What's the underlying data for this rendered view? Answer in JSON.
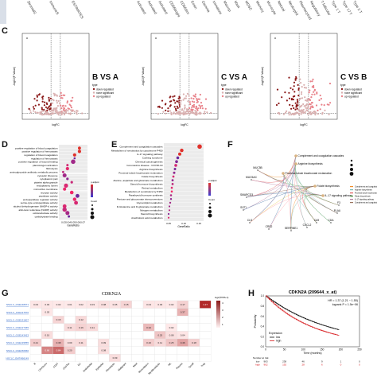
{
  "top_strip": {
    "left_labels": [
      "StromalS",
      "ImmuneS",
      "ESTIMATES"
    ],
    "right_labels": [
      "Activated",
      "Activated",
      "Activated",
      "CD56bright",
      "CD56dim",
      "Eosin",
      "Gamma",
      "Immature",
      "Macrop",
      "Mast",
      "MDSC",
      "Memory",
      "Monocyte",
      "Natural",
      "Neutrophil",
      "Plasmacytoid",
      "Regulatory",
      "T follicular",
      "Type 1 T",
      "Type 17 T",
      "Type 2 T"
    ]
  },
  "panel_c": {
    "label": "C",
    "plots": [
      {
        "title": "B VS A",
        "xlabel": "logFC",
        "ylabel": "-log10(P Value)"
      },
      {
        "title": "C VS A",
        "xlabel": "logFC",
        "ylabel": "-log10(P Value)"
      },
      {
        "title": "C VS B",
        "xlabel": "logFC",
        "ylabel": "-log10(P Value)"
      }
    ],
    "legend_title": "type",
    "legend_items": [
      "down regulated",
      "none significant",
      "up regulated"
    ]
  },
  "panel_d": {
    "label": "D",
    "xlabel": "GeneRatio",
    "legend_title_p": "p.adjust",
    "legend_title_count": "Count",
    "terms": [
      "positive regulation of blood coagulation",
      "positive regulation of hemostasis",
      "regulation of blood coagulation",
      "regulation of hemostasis",
      "positive regulation of wound healing",
      "plasminogen activation",
      "fibrinolysis",
      "aminoglycoside antibiotic metabolic process",
      "cytosolic ribosome",
      "cytoplasmic part",
      "platelet alpha granule",
      "endoplasmic lumen",
      "microvillus membrane",
      "receptor activity",
      "peptidase activity",
      "endopeptidase regulator activity",
      "serine-type endopeptidase activity",
      "alcohol dehydrogenase (NADP+) activity",
      "aldo-keto reductase (NADP) activity",
      "oxidoreductase activity",
      "carbohydrate binding"
    ],
    "xticks": [
      "0.03",
      "0.04",
      "0.05",
      "0.06",
      "0.07"
    ]
  },
  "panel_e": {
    "label": "E",
    "xlabel": "GeneRatio",
    "legend_title_p": "p.adjust",
    "legend_title_count": "Count",
    "terms": [
      "Complement and coagulation cascades",
      "Metabolism of xenobiotics by cytochrome P450",
      "IL-17 signaling pathway",
      "Cushing syndrome",
      "Chemical carcinogenesis",
      "Coronavirus disease - COVID-19",
      "Arginine biosynthesis",
      "Proximal tubule bicarbonate reclamation",
      "Folate biosynthesis",
      "Alanine, aspartate and glutamate metabolism",
      "Steroid hormone biosynthesis",
      "Retinol metabolism",
      "Metabolism of xenobiotics by P450",
      "Parathyroid hormone synthesis",
      "Pentose and glucuronate interconversions",
      "Glycerolipid metabolism",
      "D-Glutamine and D-glutamate metabolism",
      "Nitrogen metabolism",
      "Steroid biosynthesis",
      "Arachidonic acid metabolism"
    ],
    "xticks": [
      "0.05",
      "0.10",
      "0.15"
    ]
  },
  "panel_f": {
    "label": "F",
    "center_terms": [
      "Complement and coagulation cascades",
      "Arginine biosynthesis",
      "Proximal tubule bicarbonate reclamation",
      "Folate biosynthesis",
      "IL-17 signaling pathway"
    ],
    "genes": [
      "MUC5B",
      "MUC5AC",
      "SMARCD3",
      "SGTI",
      "CLS",
      "CRS2",
      "SERPINE1",
      "CXCL2",
      "CA9",
      "CDA",
      "PLAU",
      "F3"
    ]
  },
  "panel_g": {
    "label": "G",
    "title": "CDKN2A",
    "legend_title": "log2(TPM+1)",
    "legend_ticks": [
      "4",
      "3",
      "2",
      "1"
    ],
    "row_labels": [
      "NSCLC_GSE148071",
      "NSCLC_GSE117570",
      "NSCLC_GSE131907",
      "NSCLC_GSE127465",
      "NSCLC_GSE143423",
      "NSCLC_GSE139555",
      "NSCLC_GSE150660",
      "NSCLC_EMTAB6149"
    ],
    "col_labels": [
      "B",
      "CD4Tconv",
      "CD8T",
      "CD8Tex",
      "DC",
      "Endothelial",
      "Epithelial",
      "Fibroblasts",
      "Malignant",
      "Mast",
      "Mono/Macro",
      "Myofibroblasts",
      "NK",
      "Plasma",
      "Tprolif",
      "Treg"
    ],
    "cells": [
      [
        "0.03",
        "0.03",
        "0.02",
        "0.01",
        "0.02",
        "0.03",
        "0.08",
        "0.05",
        "0.15",
        "",
        "0.04",
        "0.03",
        "0.02",
        "0.17",
        "",
        "1.27"
      ],
      [
        "",
        "0.03",
        "",
        "",
        "",
        "",
        "",
        "",
        "",
        "",
        "",
        "",
        "",
        "0.37",
        "",
        ""
      ],
      [
        "",
        "",
        "0.15",
        "",
        "0.12",
        "",
        "",
        "",
        "",
        "",
        "",
        "",
        "",
        "",
        "",
        ""
      ],
      [
        "",
        "",
        "",
        "0.11",
        "0.16",
        "0.11",
        "",
        "",
        "",
        "",
        "0.32",
        "",
        "0.02",
        "",
        "",
        ""
      ],
      [
        "",
        "0.10",
        "",
        "",
        "",
        "",
        "",
        "",
        "",
        "",
        "",
        "0.25",
        "0.08",
        "0.04",
        "",
        ""
      ],
      [
        "0.21",
        "",
        "0.38",
        "0.09",
        "0.11",
        "",
        "0.09",
        "",
        "",
        "",
        "0.20",
        "0.11",
        "0.25",
        "0.46",
        "0.18",
        ""
      ],
      [
        "",
        "0.66",
        "0.84",
        "0.20",
        "",
        "",
        "0.08",
        "",
        "",
        "",
        "",
        "",
        "",
        "",
        "",
        ""
      ],
      [
        "",
        "",
        "",
        "",
        "",
        "",
        "",
        "0.09",
        "",
        "",
        "",
        "",
        "",
        "",
        "",
        ""
      ]
    ]
  },
  "panel_h": {
    "label": "H",
    "title": "CDKN2A (209644_x_at)",
    "hr": "HR = 1.37 (1.21 − 1.55)",
    "logrank": "logrank P = 1.5e−06",
    "ylabel": "Probability",
    "xlabel": "Time (months)",
    "legend_title": "Expression",
    "legend_items": [
      "low",
      "high"
    ],
    "colors": {
      "low": "#111111",
      "high": "#d7191c"
    },
    "yticks": [
      "0.0",
      "0.2",
      "0.4",
      "0.6",
      "0.8",
      "1.0"
    ],
    "xticks": [
      "0",
      "50",
      "100",
      "150",
      "200",
      "250"
    ],
    "risk_label": "Number at risk",
    "risk_low": [
      "low",
      "963",
      "238",
      "46",
      "9",
      "1",
      "0"
    ],
    "risk_high": [
      "high",
      "962",
      "192",
      "28",
      "6",
      "0",
      "0"
    ]
  }
}
